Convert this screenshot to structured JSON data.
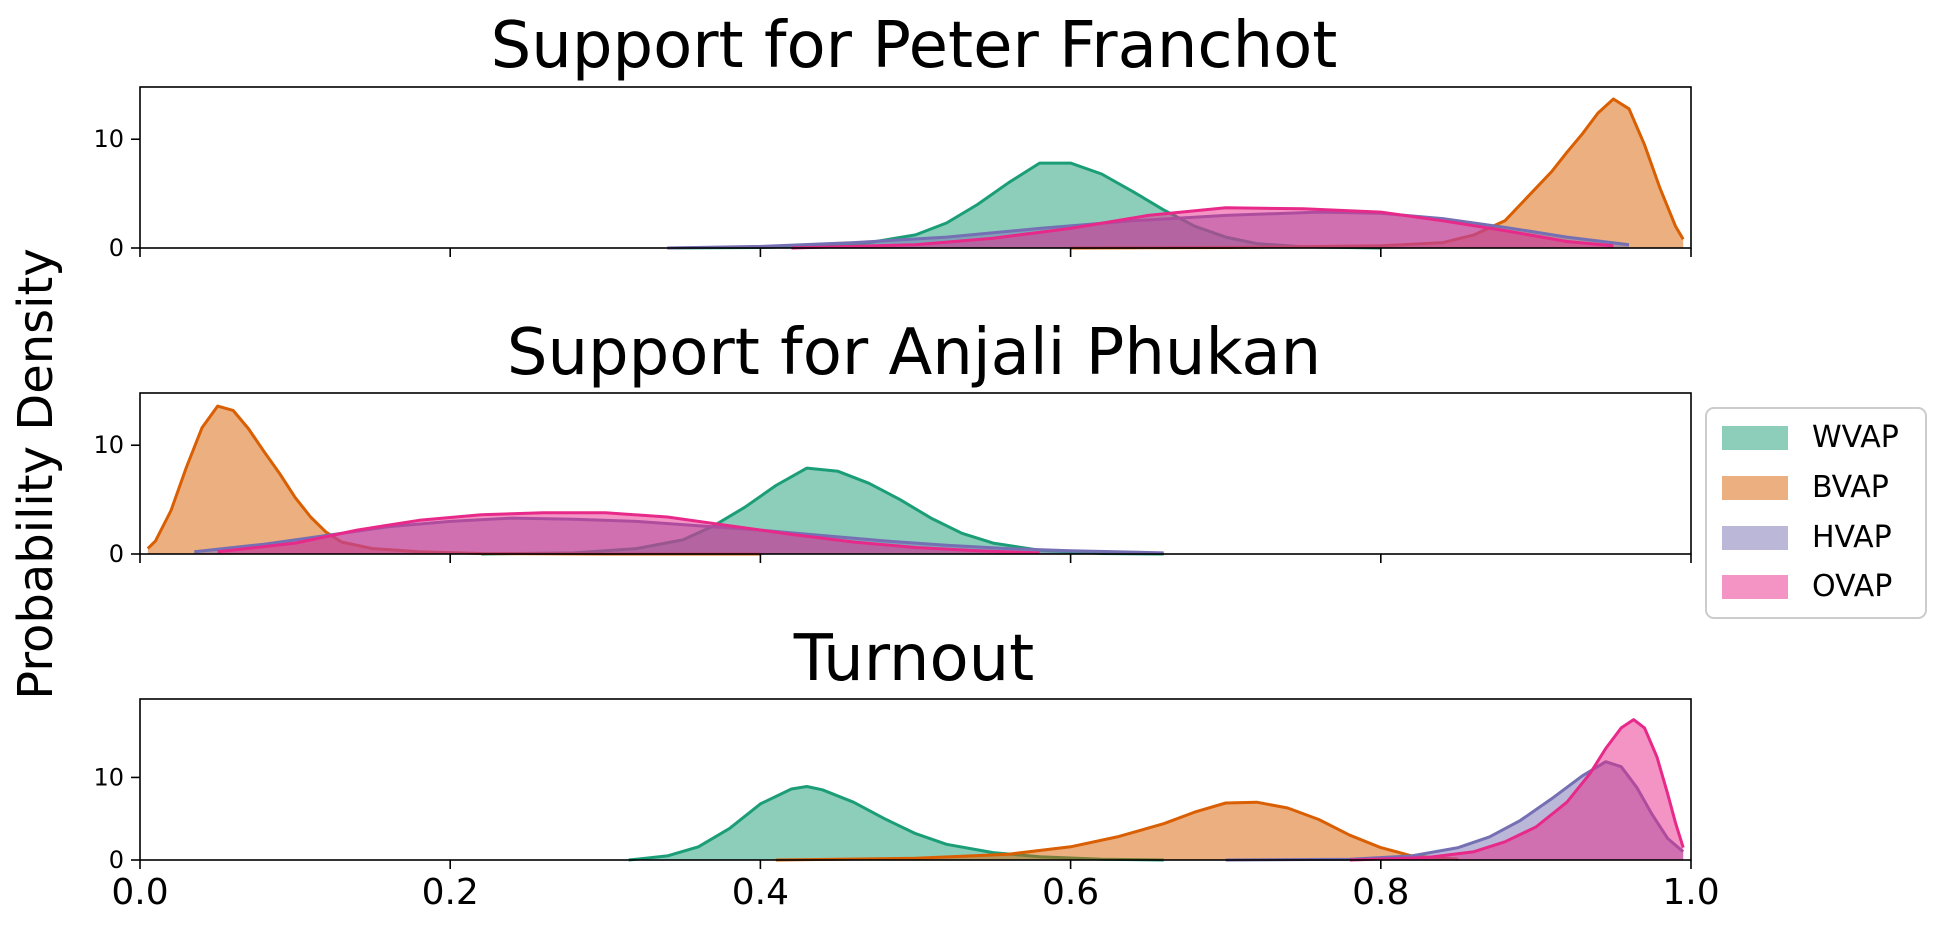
{
  "figure": {
    "ylabel": "Probability Density"
  },
  "legend": {
    "placement": "center-right",
    "entries": [
      {
        "name": "WVAP",
        "color": "#1b9e77"
      },
      {
        "name": "BVAP",
        "color": "#d95f02"
      },
      {
        "name": "HVAP",
        "color": "#7570b3"
      },
      {
        "name": "OVAP",
        "color": "#e7298a"
      }
    ]
  },
  "chart_data": [
    {
      "type": "area",
      "title": "Support for Peter Franchot",
      "xlim": [
        0.0,
        1.0
      ],
      "ylim": [
        0,
        14.8
      ],
      "xticks": [
        0.0,
        0.2,
        0.4,
        0.6,
        0.8,
        1.0
      ],
      "xtick_labels_shown": false,
      "yticks": [
        0,
        10
      ],
      "ytick_labels": [
        "0",
        "10"
      ],
      "series": [
        {
          "name": "WVAP",
          "color": "#1b9e77",
          "x": [
            0.34,
            0.4,
            0.44,
            0.47,
            0.5,
            0.52,
            0.54,
            0.56,
            0.58,
            0.6,
            0.62,
            0.64,
            0.66,
            0.68,
            0.7,
            0.72,
            0.75,
            0.8
          ],
          "y": [
            0.0,
            0.05,
            0.2,
            0.5,
            1.2,
            2.3,
            4.0,
            6.0,
            7.8,
            7.8,
            6.8,
            5.2,
            3.5,
            2.0,
            1.0,
            0.4,
            0.1,
            0.0
          ]
        },
        {
          "name": "BVAP",
          "color": "#d95f02",
          "x": [
            0.6,
            0.7,
            0.8,
            0.84,
            0.86,
            0.88,
            0.89,
            0.9,
            0.91,
            0.92,
            0.93,
            0.94,
            0.95,
            0.96,
            0.97,
            0.98,
            0.99,
            0.995
          ],
          "y": [
            0.0,
            0.05,
            0.2,
            0.5,
            1.2,
            2.5,
            4.0,
            5.5,
            7.0,
            8.8,
            10.5,
            12.4,
            13.7,
            12.8,
            9.5,
            5.5,
            2.0,
            0.8
          ]
        },
        {
          "name": "HVAP",
          "color": "#7570b3",
          "x": [
            0.34,
            0.4,
            0.46,
            0.52,
            0.58,
            0.64,
            0.7,
            0.76,
            0.8,
            0.84,
            0.88,
            0.92,
            0.96
          ],
          "y": [
            0.0,
            0.15,
            0.5,
            1.0,
            1.8,
            2.5,
            3.0,
            3.3,
            3.2,
            2.7,
            1.9,
            1.0,
            0.3
          ]
        },
        {
          "name": "OVAP",
          "color": "#e7298a",
          "x": [
            0.42,
            0.5,
            0.55,
            0.6,
            0.65,
            0.7,
            0.75,
            0.8,
            0.84,
            0.88,
            0.92,
            0.95
          ],
          "y": [
            0.0,
            0.3,
            0.9,
            1.8,
            3.0,
            3.7,
            3.6,
            3.3,
            2.5,
            1.6,
            0.6,
            0.2
          ]
        }
      ]
    },
    {
      "type": "area",
      "title": "Support for Anjali Phukan",
      "xlim": [
        0.0,
        1.0
      ],
      "ylim": [
        0,
        14.8
      ],
      "xticks": [
        0.0,
        0.2,
        0.4,
        0.6,
        0.8,
        1.0
      ],
      "xtick_labels_shown": false,
      "yticks": [
        0,
        10
      ],
      "ytick_labels": [
        "0",
        "10"
      ],
      "series": [
        {
          "name": "WVAP",
          "color": "#1b9e77",
          "x": [
            0.22,
            0.28,
            0.32,
            0.35,
            0.37,
            0.39,
            0.41,
            0.43,
            0.45,
            0.47,
            0.49,
            0.51,
            0.53,
            0.55,
            0.58,
            0.62,
            0.66
          ],
          "y": [
            0.0,
            0.1,
            0.5,
            1.3,
            2.6,
            4.3,
            6.3,
            7.9,
            7.6,
            6.5,
            5.0,
            3.3,
            1.9,
            1.0,
            0.35,
            0.05,
            0.0
          ]
        },
        {
          "name": "BVAP",
          "color": "#d95f02",
          "x": [
            0.005,
            0.01,
            0.02,
            0.03,
            0.04,
            0.05,
            0.06,
            0.07,
            0.08,
            0.09,
            0.1,
            0.11,
            0.12,
            0.13,
            0.15,
            0.18,
            0.22,
            0.3,
            0.4
          ],
          "y": [
            0.5,
            1.2,
            4.0,
            8.0,
            11.6,
            13.6,
            13.2,
            11.5,
            9.4,
            7.4,
            5.2,
            3.4,
            2.0,
            1.1,
            0.5,
            0.2,
            0.05,
            0.0,
            0.0
          ]
        },
        {
          "name": "HVAP",
          "color": "#7570b3",
          "x": [
            0.035,
            0.08,
            0.12,
            0.16,
            0.2,
            0.24,
            0.28,
            0.32,
            0.36,
            0.4,
            0.44,
            0.48,
            0.52,
            0.56,
            0.6,
            0.66
          ],
          "y": [
            0.2,
            0.9,
            1.7,
            2.5,
            3.0,
            3.3,
            3.2,
            3.0,
            2.6,
            2.2,
            1.7,
            1.2,
            0.8,
            0.5,
            0.3,
            0.1
          ]
        },
        {
          "name": "OVAP",
          "color": "#e7298a",
          "x": [
            0.05,
            0.1,
            0.14,
            0.18,
            0.22,
            0.26,
            0.3,
            0.34,
            0.38,
            0.42,
            0.46,
            0.5,
            0.54,
            0.58
          ],
          "y": [
            0.2,
            1.0,
            2.2,
            3.1,
            3.6,
            3.8,
            3.8,
            3.4,
            2.6,
            1.8,
            1.1,
            0.6,
            0.3,
            0.1
          ]
        }
      ]
    },
    {
      "type": "area",
      "title": "Turnout",
      "xlim": [
        0.0,
        1.0
      ],
      "ylim": [
        0,
        19.5
      ],
      "xticks": [
        0.0,
        0.2,
        0.4,
        0.6,
        0.8,
        1.0
      ],
      "xtick_labels": [
        "0.0",
        "0.2",
        "0.4",
        "0.6",
        "0.8",
        "1.0"
      ],
      "yticks": [
        0,
        10
      ],
      "ytick_labels": [
        "0",
        "10"
      ],
      "series": [
        {
          "name": "WVAP",
          "color": "#1b9e77",
          "x": [
            0.315,
            0.34,
            0.36,
            0.38,
            0.4,
            0.42,
            0.43,
            0.44,
            0.46,
            0.48,
            0.5,
            0.52,
            0.55,
            0.58,
            0.62,
            0.66
          ],
          "y": [
            0.0,
            0.5,
            1.6,
            3.8,
            6.8,
            8.6,
            8.9,
            8.5,
            7.0,
            5.0,
            3.2,
            1.9,
            0.9,
            0.4,
            0.1,
            0.0
          ]
        },
        {
          "name": "BVAP",
          "color": "#d95f02",
          "x": [
            0.41,
            0.5,
            0.56,
            0.6,
            0.63,
            0.66,
            0.68,
            0.7,
            0.72,
            0.74,
            0.76,
            0.78,
            0.8,
            0.82,
            0.85
          ],
          "y": [
            0.0,
            0.2,
            0.7,
            1.6,
            2.8,
            4.4,
            5.8,
            6.9,
            7.0,
            6.3,
            4.9,
            3.0,
            1.5,
            0.5,
            0.1
          ]
        },
        {
          "name": "HVAP",
          "color": "#7570b3",
          "x": [
            0.7,
            0.78,
            0.82,
            0.85,
            0.87,
            0.89,
            0.91,
            0.93,
            0.945,
            0.955,
            0.965,
            0.975,
            0.985,
            0.995
          ],
          "y": [
            0.0,
            0.1,
            0.5,
            1.5,
            2.8,
            4.8,
            7.4,
            10.2,
            11.9,
            11.3,
            8.8,
            5.5,
            2.6,
            1.0
          ]
        },
        {
          "name": "OVAP",
          "color": "#e7298a",
          "x": [
            0.78,
            0.83,
            0.86,
            0.88,
            0.9,
            0.92,
            0.935,
            0.945,
            0.955,
            0.963,
            0.97,
            0.978,
            0.985,
            0.99,
            0.995
          ],
          "y": [
            0.0,
            0.3,
            1.0,
            2.2,
            4.0,
            7.0,
            10.5,
            13.5,
            16.0,
            17.0,
            16.0,
            12.5,
            8.0,
            4.5,
            1.5
          ]
        }
      ]
    }
  ]
}
